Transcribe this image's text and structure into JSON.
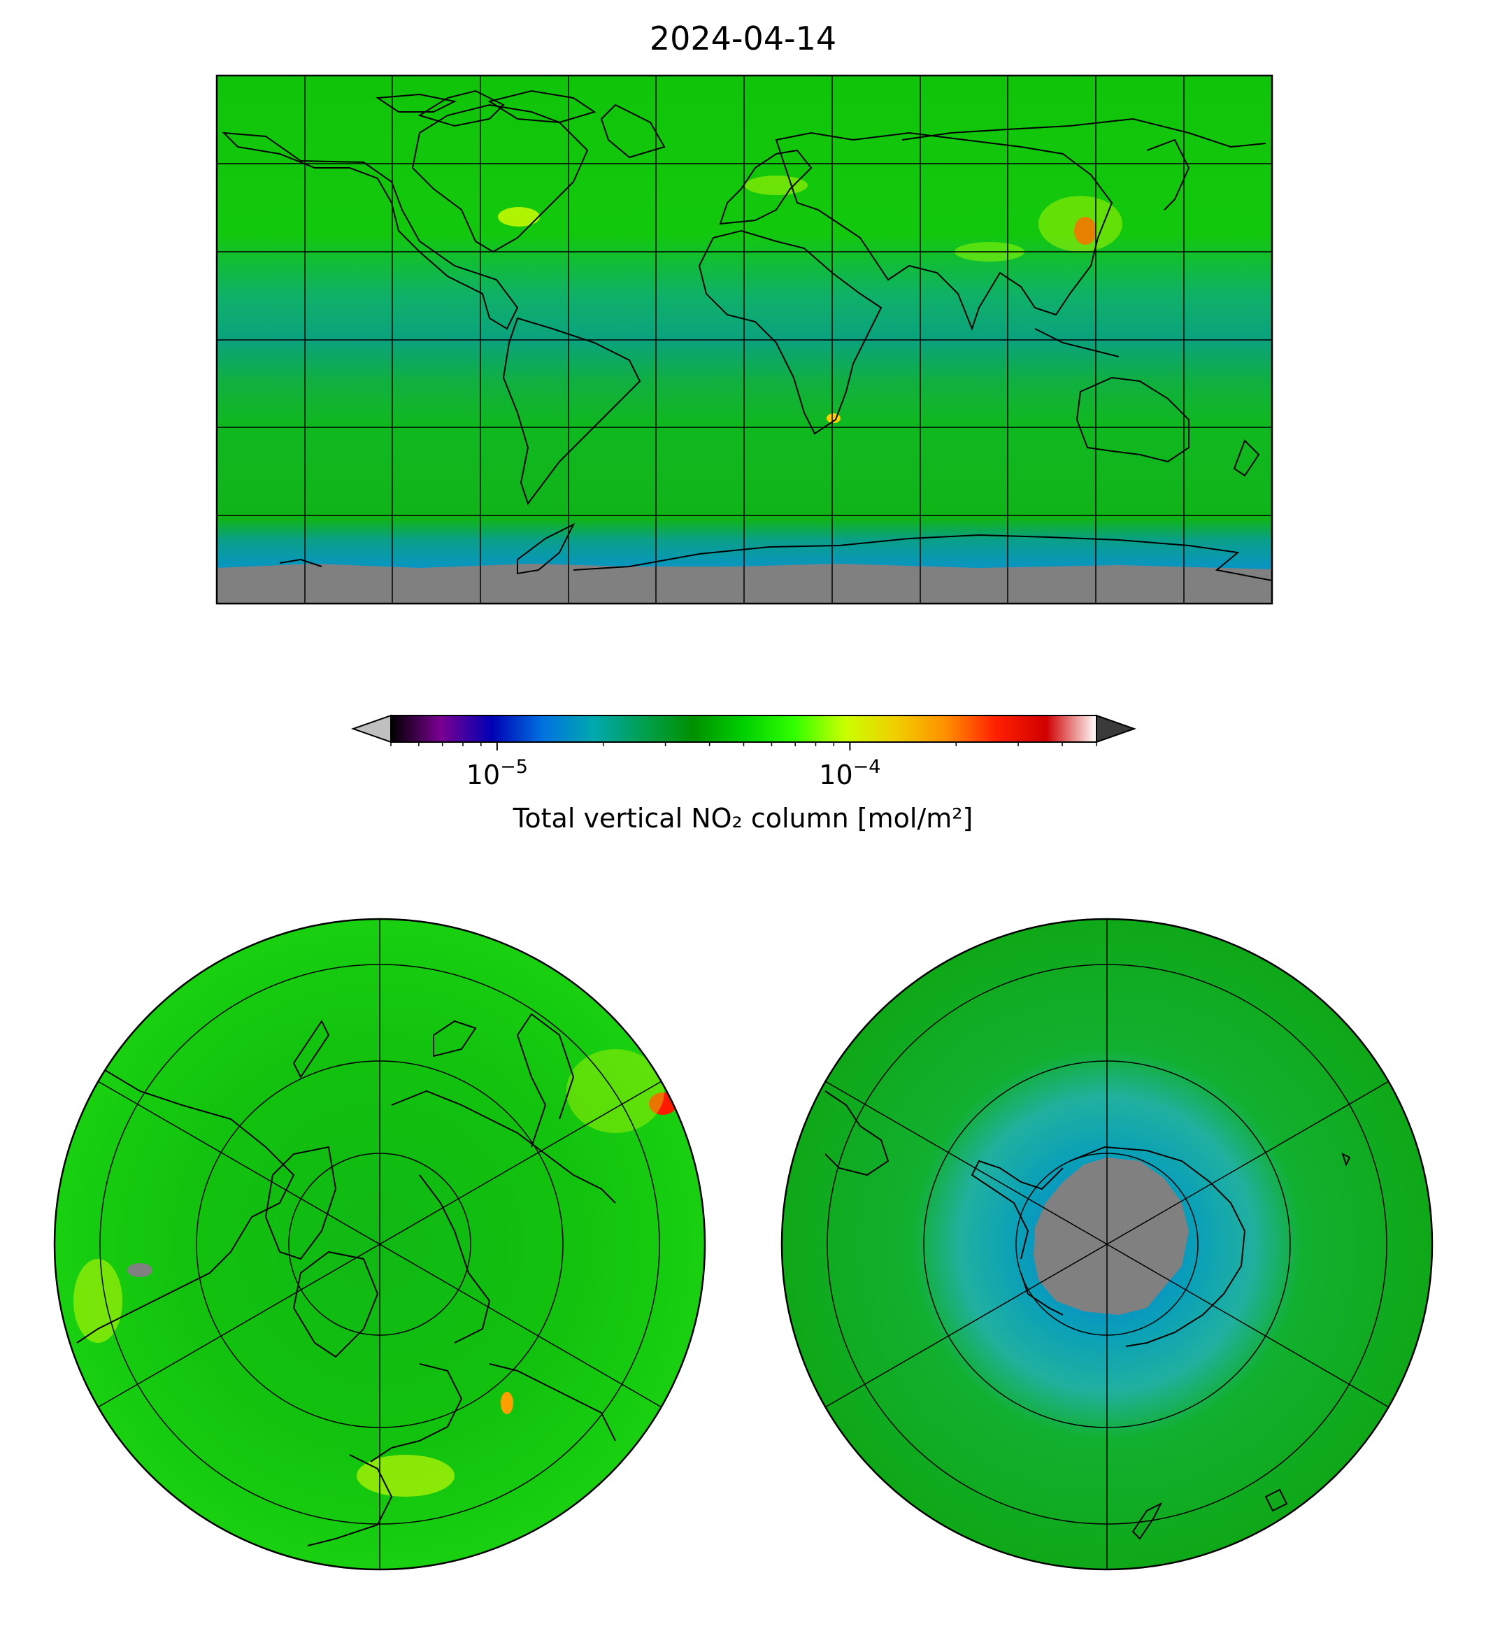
{
  "title": "2024-04-14",
  "colorbar": {
    "label": "Total vertical NO₂ column [mol/m²]",
    "scale": "log",
    "range": [
      5e-06,
      0.0005
    ],
    "ticks": [
      {
        "value": 1e-05,
        "base": "10",
        "exp": "−5"
      },
      {
        "value": 0.0001,
        "base": "10",
        "exp": "−4"
      }
    ],
    "extend_low_color": "#c0c0c0",
    "extend_high_color": "#3a3a3a",
    "stops": [
      "#000000",
      "#7a0090",
      "#0000b4",
      "#0070e0",
      "#00a8b0",
      "#00a050",
      "#009000",
      "#00d000",
      "#30ff00",
      "#c8ff00",
      "#f0d000",
      "#ff9000",
      "#ff2000",
      "#d00000",
      "#ffffff"
    ]
  },
  "colors": {
    "background_no2": "#14c80a",
    "low_no2": "#0aa88c",
    "no_data": "#808080",
    "hotspot": "#ff1a00",
    "coastline": "#000000",
    "grid": "#000000"
  },
  "maps": [
    {
      "name": "global",
      "projection": "plate-carree"
    },
    {
      "name": "north-polar",
      "projection": "north-polar-stereographic"
    },
    {
      "name": "south-polar",
      "projection": "south-polar-stereographic"
    }
  ]
}
